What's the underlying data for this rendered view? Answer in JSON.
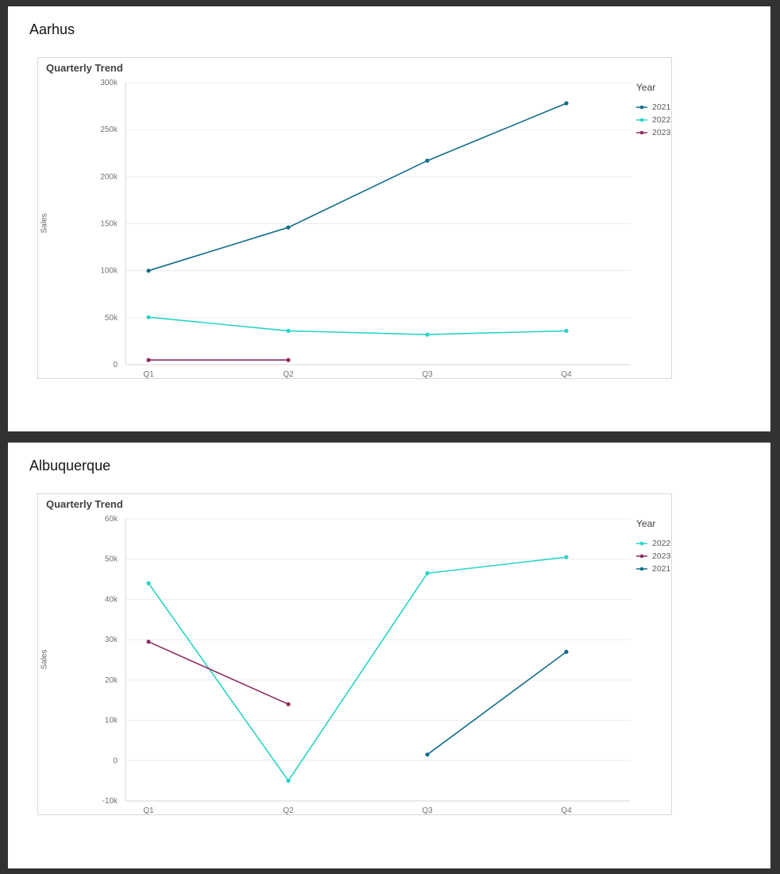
{
  "page": {
    "background_color": "#323232",
    "panel_background": "#ffffff",
    "card_border_color": "#d9d9d9",
    "gridline_color": "#ececec",
    "axis_line_color": "#d7d7d7",
    "tick_label_color": "#737373"
  },
  "chart_data": [
    {
      "type": "line",
      "panel_title": "Aarhus",
      "title": "Quarterly Trend",
      "ylabel": "Sales",
      "xlabel": "",
      "legend_title": "Year",
      "legend_position": "right",
      "grid": "horizontal",
      "categories": [
        "Q1",
        "Q2",
        "Q3",
        "Q4"
      ],
      "ylim": [
        0,
        300000
      ],
      "ytick_step": 50000,
      "ytick_labels": [
        "0",
        "50k",
        "100k",
        "150k",
        "200k",
        "250k",
        "300k"
      ],
      "series": [
        {
          "name": "2021",
          "color": "#136d8c",
          "values": [
            100000,
            146000,
            217000,
            278000
          ]
        },
        {
          "name": "2022",
          "color": "#28d4c5",
          "values": [
            50500,
            36000,
            32000,
            36000
          ]
        },
        {
          "name": "2023",
          "color": "#8e2b63",
          "values": [
            5000,
            5000,
            null,
            null
          ]
        }
      ]
    },
    {
      "type": "line",
      "panel_title": "Albuquerque",
      "title": "Quarterly Trend",
      "ylabel": "Sales",
      "xlabel": "",
      "legend_title": "Year",
      "legend_position": "right",
      "grid": "horizontal",
      "categories": [
        "Q1",
        "Q2",
        "Q3",
        "Q4"
      ],
      "ylim": [
        -10000,
        60000
      ],
      "ytick_step": 10000,
      "ytick_labels": [
        "-10k",
        "0",
        "10k",
        "20k",
        "30k",
        "40k",
        "50k",
        "60k"
      ],
      "series": [
        {
          "name": "2022",
          "color": "#28d4c5",
          "values": [
            44000,
            -5000,
            46500,
            50500
          ]
        },
        {
          "name": "2023",
          "color": "#8e2b63",
          "values": [
            29500,
            14000,
            null,
            null
          ]
        },
        {
          "name": "2021",
          "color": "#136d8c",
          "values": [
            null,
            null,
            1500,
            27000
          ]
        }
      ]
    }
  ]
}
